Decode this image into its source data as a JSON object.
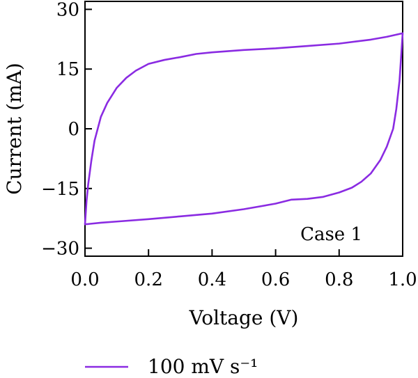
{
  "chart_data": {
    "type": "line",
    "title": "",
    "xlabel": "Voltage (V)",
    "ylabel": "Current (mA)",
    "xlim": [
      0.0,
      1.0
    ],
    "ylim": [
      -32,
      32
    ],
    "x_ticks": [
      0.0,
      0.2,
      0.4,
      0.6,
      0.8,
      1.0
    ],
    "x_tick_labels": [
      "0.0",
      "0.2",
      "0.4",
      "0.6",
      "0.8",
      "1.0"
    ],
    "y_ticks": [
      30,
      15,
      0,
      -15,
      -30
    ],
    "y_tick_labels": [
      "30",
      "15",
      "0",
      "−15",
      "−30"
    ],
    "annotation": "Case 1",
    "grid": false,
    "legend_position": "bottom",
    "color": "#8a2be2",
    "series": [
      {
        "name": "100 mV s⁻¹",
        "x": [
          0.0,
          0.005,
          0.01,
          0.02,
          0.03,
          0.05,
          0.07,
          0.1,
          0.13,
          0.16,
          0.2,
          0.25,
          0.3,
          0.35,
          0.4,
          0.5,
          0.6,
          0.7,
          0.8,
          0.9,
          0.95,
          1.0,
          0.995,
          0.99,
          0.98,
          0.97,
          0.95,
          0.93,
          0.9,
          0.87,
          0.84,
          0.8,
          0.75,
          0.7,
          0.65,
          0.6,
          0.5,
          0.4,
          0.3,
          0.2,
          0.1,
          0.05,
          0.0
        ],
        "y": [
          -24,
          -18,
          -14,
          -8,
          -3,
          3,
          6.5,
          10.3,
          12.8,
          14.6,
          16.3,
          17.3,
          18,
          18.8,
          19.2,
          19.8,
          20.2,
          20.8,
          21.4,
          22.4,
          23.1,
          24,
          18,
          12,
          5,
          0,
          -4.5,
          -7.8,
          -11.2,
          -13.3,
          -14.8,
          -16,
          -17.1,
          -17.6,
          -17.8,
          -18.8,
          -20.2,
          -21.3,
          -22,
          -22.7,
          -23.3,
          -23.6,
          -24
        ]
      }
    ]
  }
}
